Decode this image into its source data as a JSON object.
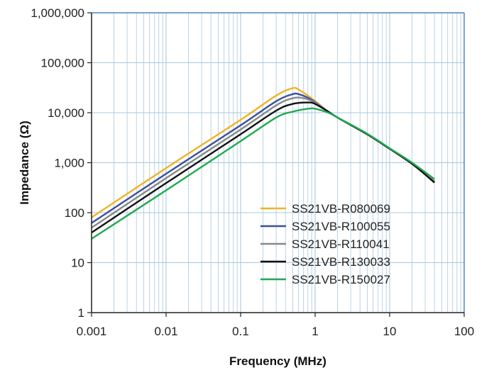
{
  "chart_data": {
    "type": "line",
    "title": "",
    "xlabel": "Frequency (MHz)",
    "ylabel": "Impedance (Ω)",
    "x_scale": "log",
    "y_scale": "log",
    "xlim": [
      0.001,
      100
    ],
    "ylim": [
      1,
      1000000
    ],
    "x_ticks": [
      "0.001",
      "0.01",
      "0.1",
      "1",
      "10",
      "100"
    ],
    "y_ticks": [
      "1",
      "10",
      "100",
      "1,000",
      "10,000",
      "100,000",
      "1,000,000"
    ],
    "grid": true,
    "legend_position": "bottom-right",
    "colors": {
      "grid": "#a8c8de",
      "axis": "#4a86c0",
      "background": "#ffffff"
    },
    "series": [
      {
        "name": "SS21VB-R080069",
        "color": "#f0b323",
        "points": [
          [
            0.001,
            80
          ],
          [
            0.01,
            780
          ],
          [
            0.1,
            7200
          ],
          [
            0.3,
            22000
          ],
          [
            0.5,
            31000
          ],
          [
            0.6,
            29000
          ],
          [
            0.8,
            22000
          ],
          [
            1,
            17000
          ],
          [
            1.5,
            10500
          ],
          [
            2,
            8000
          ],
          [
            5,
            3700
          ],
          [
            10,
            1900
          ],
          [
            20,
            950
          ],
          [
            40,
            420
          ]
        ]
      },
      {
        "name": "SS21VB-R100055",
        "color": "#3a4fa0",
        "points": [
          [
            0.001,
            62
          ],
          [
            0.01,
            600
          ],
          [
            0.1,
            5600
          ],
          [
            0.3,
            17000
          ],
          [
            0.5,
            23500
          ],
          [
            0.6,
            23500
          ],
          [
            0.8,
            20000
          ],
          [
            1,
            16500
          ],
          [
            1.5,
            10500
          ],
          [
            2,
            8000
          ],
          [
            5,
            3700
          ],
          [
            10,
            1900
          ],
          [
            20,
            950
          ],
          [
            40,
            420
          ]
        ]
      },
      {
        "name": "SS21VB-R110041",
        "color": "#888888",
        "points": [
          [
            0.001,
            50
          ],
          [
            0.01,
            490
          ],
          [
            0.1,
            4600
          ],
          [
            0.3,
            14000
          ],
          [
            0.5,
            19500
          ],
          [
            0.7,
            19500
          ],
          [
            1,
            16000
          ],
          [
            1.5,
            10500
          ],
          [
            2,
            8000
          ],
          [
            5,
            3700
          ],
          [
            10,
            1900
          ],
          [
            20,
            950
          ],
          [
            40,
            420
          ]
        ]
      },
      {
        "name": "SS21VB-R130033",
        "color": "#111111",
        "points": [
          [
            0.001,
            40
          ],
          [
            0.01,
            390
          ],
          [
            0.1,
            3700
          ],
          [
            0.3,
            11000
          ],
          [
            0.5,
            15000
          ],
          [
            0.8,
            16000
          ],
          [
            1,
            15000
          ],
          [
            1.5,
            10500
          ],
          [
            2,
            8000
          ],
          [
            5,
            3700
          ],
          [
            10,
            1900
          ],
          [
            20,
            950
          ],
          [
            40,
            400
          ]
        ]
      },
      {
        "name": "SS21VB-R150027",
        "color": "#1faa52",
        "points": [
          [
            0.001,
            30
          ],
          [
            0.01,
            280
          ],
          [
            0.1,
            2700
          ],
          [
            0.3,
            8000
          ],
          [
            0.5,
            10500
          ],
          [
            0.8,
            12000
          ],
          [
            1,
            12000
          ],
          [
            1.5,
            10000
          ],
          [
            2,
            8000
          ],
          [
            5,
            3800
          ],
          [
            10,
            1950
          ],
          [
            20,
            1000
          ],
          [
            40,
            470
          ]
        ]
      }
    ]
  }
}
